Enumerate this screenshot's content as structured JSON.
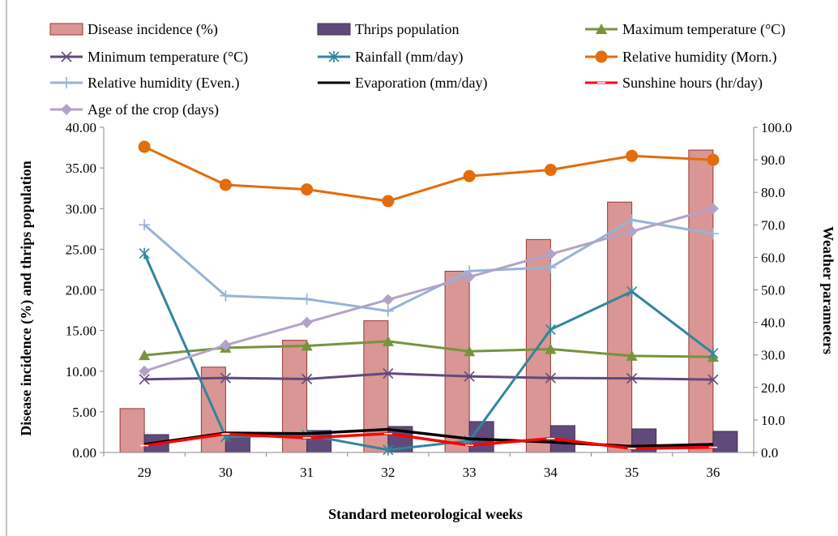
{
  "chart_data": {
    "type": "bar+line",
    "categories": [
      "29",
      "30",
      "31",
      "32",
      "33",
      "34",
      "35",
      "36"
    ],
    "xlabel": "Standard meteorological weeks",
    "ylabel": "Disease incidence (%) and thrips population",
    "y2label": "Weather parameters",
    "ylim": [
      0,
      40
    ],
    "y2lim": [
      0,
      100
    ],
    "y_ticks": [
      "0.00",
      "5.00",
      "10.00",
      "15.00",
      "20.00",
      "25.00",
      "30.00",
      "35.00",
      "40.00"
    ],
    "y2_ticks": [
      "0.0",
      "10.0",
      "20.0",
      "30.0",
      "40.0",
      "50.0",
      "60.0",
      "70.0",
      "80.0",
      "90.0",
      "100.0"
    ],
    "grid": false,
    "legend_position": "top",
    "series": [
      {
        "name": "Disease incidence (%)",
        "type": "bar",
        "axis": "left",
        "color": "#d99694",
        "border": "#953735",
        "marker": "bar",
        "values": [
          5.4,
          10.5,
          13.8,
          16.2,
          22.3,
          26.2,
          30.8,
          37.2
        ]
      },
      {
        "name": "Thrips population",
        "type": "bar",
        "axis": "left",
        "color": "#604a7b",
        "border": "#3f3151",
        "marker": "bar",
        "values": [
          2.2,
          2.5,
          2.7,
          3.2,
          3.8,
          3.3,
          2.9,
          2.6
        ]
      },
      {
        "name": "Maximum temperature (°C)",
        "type": "line",
        "axis": "right",
        "color": "#77933c",
        "marker": "triangle",
        "values": [
          29.9,
          32.2,
          32.8,
          34.2,
          31.1,
          31.8,
          29.7,
          29.4
        ]
      },
      {
        "name": "Minimum temperature (°C)",
        "type": "line",
        "axis": "right",
        "color": "#604a7b",
        "marker": "x",
        "values": [
          22.5,
          22.9,
          22.6,
          24.3,
          23.4,
          22.9,
          22.8,
          22.4
        ]
      },
      {
        "name": "Rainfall (mm/day)",
        "type": "line",
        "axis": "right",
        "color": "#31859c",
        "marker": "asterisk",
        "values": [
          61.2,
          4.8,
          5.4,
          0.8,
          3.6,
          37.8,
          49.5,
          30.5
        ]
      },
      {
        "name": "Relative humidity (Morn.)",
        "type": "line",
        "axis": "right",
        "color": "#e46c0a",
        "marker": "circle",
        "values": [
          94.0,
          82.3,
          80.9,
          77.3,
          85.0,
          86.9,
          91.2,
          90.0
        ]
      },
      {
        "name": "Relative humidity (Even.)",
        "type": "line",
        "axis": "right",
        "color": "#95b3d7",
        "marker": "plus",
        "values": [
          70.0,
          48.2,
          47.2,
          43.5,
          55.8,
          56.9,
          71.5,
          67.3
        ]
      },
      {
        "name": "Evaporation (mm/day)",
        "type": "line",
        "axis": "right",
        "color": "#000000",
        "marker": "none",
        "values": [
          2.5,
          6.0,
          5.8,
          7.1,
          4.2,
          3.2,
          1.9,
          2.5
        ]
      },
      {
        "name": "Sunshine hours (hr/day)",
        "type": "line",
        "axis": "right",
        "color": "#ff0000",
        "marker": "dash",
        "values": [
          2.1,
          5.7,
          4.5,
          5.8,
          2.2,
          4.3,
          1.2,
          1.6
        ]
      },
      {
        "name": "Age of the crop (days)",
        "type": "line",
        "axis": "right",
        "color": "#b3a2c7",
        "marker": "diamond",
        "values": [
          25,
          33,
          40,
          47,
          54,
          61,
          68,
          75
        ]
      }
    ]
  }
}
